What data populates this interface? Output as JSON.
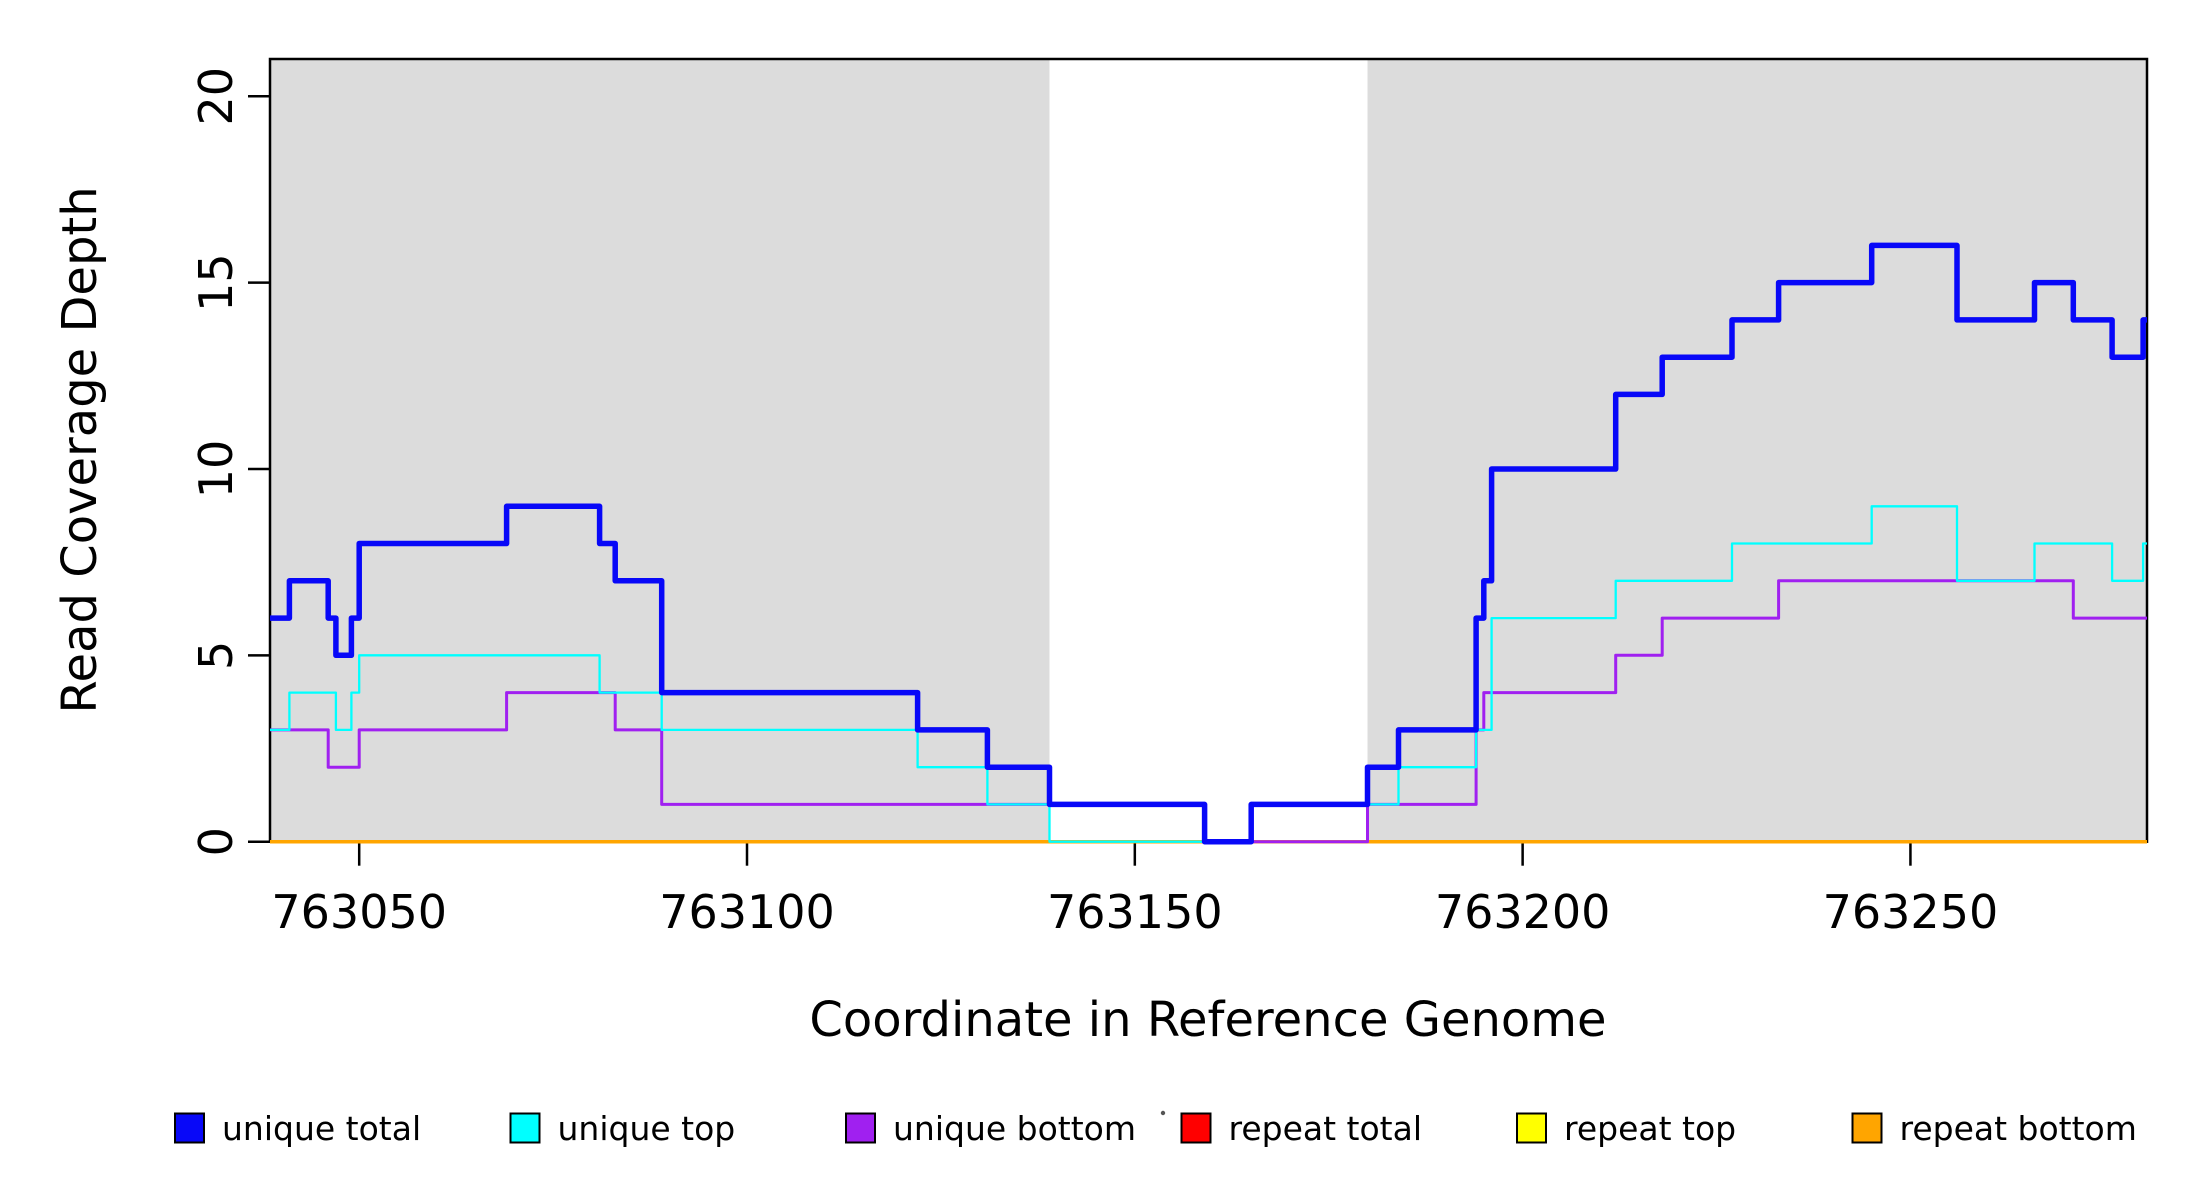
{
  "figure": {
    "background": "#ffffff",
    "plot_bg_color": "#ffffff",
    "box_color": "#000000"
  },
  "chart_data": {
    "type": "line",
    "subtype": "step-coverage",
    "title": "",
    "xlabel": "Coordinate in Reference Genome",
    "ylabel": "Read Coverage Depth",
    "xlim": [
      763038.5,
      763280.5
    ],
    "ylim": [
      0,
      21
    ],
    "x_ticks": [
      763050,
      763100,
      763150,
      763200,
      763250
    ],
    "y_ticks": [
      0,
      5,
      10,
      15,
      20
    ],
    "grid": false,
    "legend_position": "bottom",
    "shaded_regions": [
      {
        "name": "left-gray-region",
        "x0": 763038.5,
        "x1": 763139,
        "color": "#DCDCDC"
      },
      {
        "name": "right-gray-region",
        "x0": 763180,
        "x1": 763280.5,
        "color": "#DCDCDC"
      }
    ],
    "x_end": 763280.5,
    "series": [
      {
        "name": "repeat total",
        "color": "#FF0000",
        "width": 3,
        "steps": [
          [
            763038.5,
            0
          ]
        ]
      },
      {
        "name": "repeat top",
        "color": "#FFFF00",
        "width": 3,
        "steps": [
          [
            763038.5,
            0
          ]
        ]
      },
      {
        "name": "repeat bottom",
        "color": "#FFA500",
        "width": 3.5,
        "steps": [
          [
            763038.5,
            0
          ]
        ]
      },
      {
        "name": "unique bottom",
        "color": "#A020F0",
        "width": 3,
        "steps": [
          [
            763038.5,
            3
          ],
          [
            763046,
            2
          ],
          [
            763050,
            3
          ],
          [
            763069,
            4
          ],
          [
            763083,
            3
          ],
          [
            763089,
            1
          ],
          [
            763159,
            0
          ],
          [
            763180,
            1
          ],
          [
            763194,
            3
          ],
          [
            763195,
            4
          ],
          [
            763212,
            5
          ],
          [
            763218,
            6
          ],
          [
            763233,
            7
          ],
          [
            763271,
            6
          ]
        ]
      },
      {
        "name": "unique top",
        "color": "#00FFFF",
        "width": 2.3,
        "steps": [
          [
            763038.5,
            3
          ],
          [
            763041,
            4
          ],
          [
            763047,
            3
          ],
          [
            763049,
            4
          ],
          [
            763050,
            5
          ],
          [
            763081,
            4
          ],
          [
            763089,
            3
          ],
          [
            763122,
            2
          ],
          [
            763131,
            1
          ],
          [
            763139,
            0
          ],
          [
            763165,
            1
          ],
          [
            763184,
            2
          ],
          [
            763194,
            3
          ],
          [
            763196,
            6
          ],
          [
            763212,
            7
          ],
          [
            763227,
            8
          ],
          [
            763245,
            9
          ],
          [
            763256,
            7
          ],
          [
            763266,
            8
          ],
          [
            763276,
            7
          ],
          [
            763280,
            8
          ]
        ]
      },
      {
        "name": "unique total",
        "color": "#0808F8",
        "width": 5.5,
        "steps": [
          [
            763038.5,
            6
          ],
          [
            763041,
            7
          ],
          [
            763046,
            6
          ],
          [
            763047,
            5
          ],
          [
            763049,
            6
          ],
          [
            763050,
            8
          ],
          [
            763069,
            9
          ],
          [
            763081,
            8
          ],
          [
            763083,
            7
          ],
          [
            763089,
            4
          ],
          [
            763122,
            3
          ],
          [
            763131,
            2
          ],
          [
            763139,
            1
          ],
          [
            763159,
            0
          ],
          [
            763165,
            1
          ],
          [
            763180,
            2
          ],
          [
            763184,
            3
          ],
          [
            763194,
            6
          ],
          [
            763195,
            7
          ],
          [
            763196,
            10
          ],
          [
            763212,
            12
          ],
          [
            763218,
            13
          ],
          [
            763227,
            14
          ],
          [
            763233,
            15
          ],
          [
            763245,
            16
          ],
          [
            763256,
            14
          ],
          [
            763266,
            15
          ],
          [
            763271,
            14
          ],
          [
            763276,
            13
          ],
          [
            763280,
            14
          ]
        ]
      }
    ],
    "legend": [
      {
        "label": "unique total",
        "color": "#0808F8"
      },
      {
        "label": "unique top",
        "color": "#00FFFF"
      },
      {
        "label": "unique bottom",
        "color": "#A020F0"
      },
      {
        "label": "repeat total",
        "color": "#FF0000"
      },
      {
        "label": "repeat top",
        "color": "#FFFF00"
      },
      {
        "label": "repeat bottom",
        "color": "#FFA500"
      }
    ]
  }
}
